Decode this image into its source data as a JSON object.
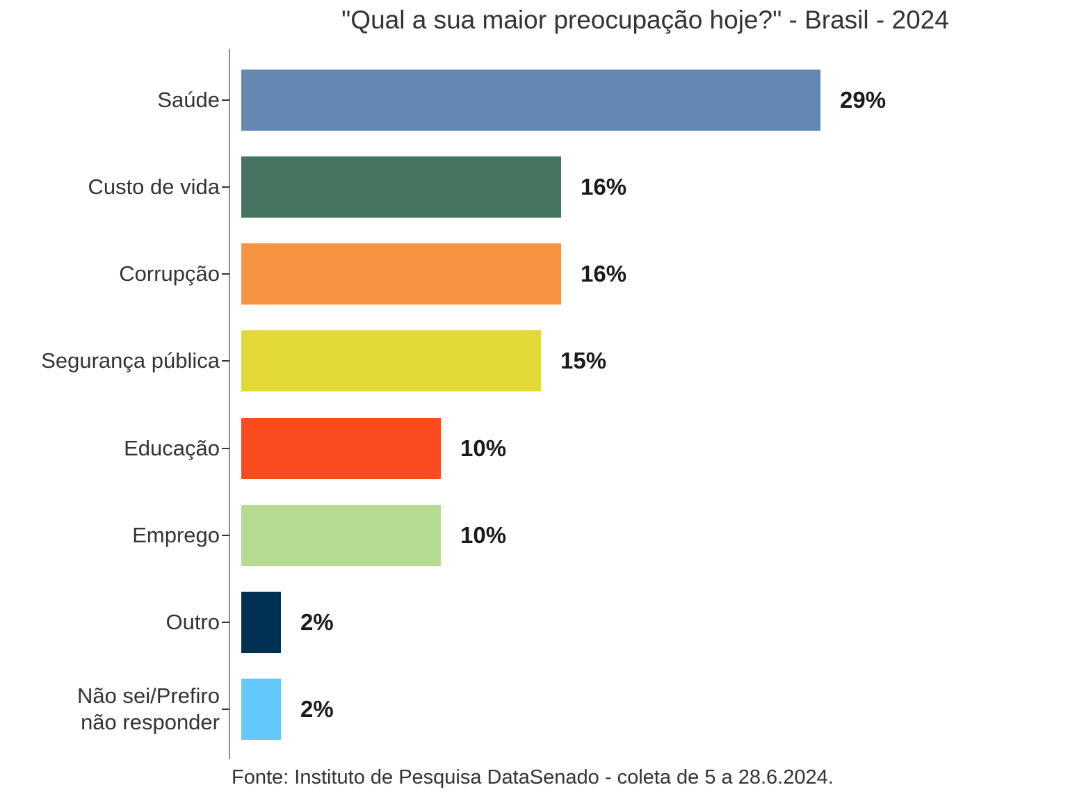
{
  "chart_data": {
    "type": "bar",
    "orientation": "horizontal",
    "title": "\"Qual a sua maior preocupação hoje?\" - Brasil - 2024",
    "source": "Fonte: Instituto de Pesquisa DataSenado - coleta de 5 a 28.6.2024.",
    "categories": [
      "Saúde",
      "Custo de vida",
      "Corrupção",
      "Segurança pública",
      "Educação",
      "Emprego",
      "Outro",
      "Não sei/Prefiro\nnão responder"
    ],
    "values": [
      29,
      16,
      16,
      15,
      10,
      10,
      2,
      2
    ],
    "value_labels": [
      "29%",
      "16%",
      "16%",
      "15%",
      "10%",
      "10%",
      "2%",
      "2%"
    ],
    "colors": [
      "#6389b3",
      "#45755f",
      "#f89441",
      "#e2d836",
      "#fb4a1e",
      "#b6dc94",
      "#013152",
      "#63c9fb"
    ],
    "xlabel": "",
    "ylabel": "",
    "xlim": [
      0,
      32
    ],
    "grid": false,
    "legend": false,
    "axis_line_color": "#8a8a8a",
    "label_color": "#333333",
    "value_label_color": "#1a1a1a"
  }
}
